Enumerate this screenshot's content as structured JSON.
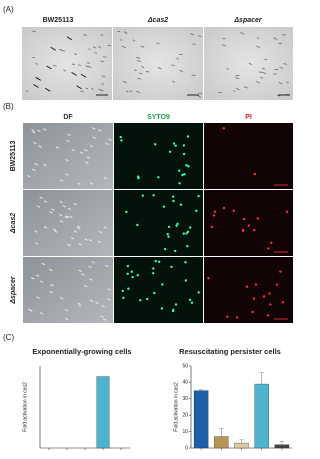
{
  "panel_a": {
    "label": "(A)",
    "columns": [
      "BW25113",
      "Δcas2",
      "Δspacer"
    ]
  },
  "panel_b": {
    "label": "(B)",
    "columns": [
      {
        "text": "DF",
        "color": "#333333"
      },
      {
        "text": "SYTO9",
        "color": "#1aa34a"
      },
      {
        "text": "PI",
        "color": "#d12a2a"
      }
    ],
    "rows": [
      "BW25113",
      "Δcas2",
      "Δspacer"
    ]
  },
  "panel_c": {
    "label": "(C)"
  },
  "chart_data": [
    {
      "type": "bar",
      "title": "Exponentially-growing cells",
      "y_label": "Fold activation in cas2",
      "categories": [
        null,
        null,
        null,
        null,
        null
      ],
      "values": [
        0,
        0,
        0,
        610,
        0
      ],
      "colors": [
        "#1f5fa8",
        "#b8965a",
        "#d9c9a3",
        "#4fb3cf",
        "#444444"
      ],
      "ylim": [
        0,
        700
      ]
    },
    {
      "type": "bar",
      "title": "Resuscitating persister cells",
      "y_label": "Fold activation in cas2",
      "categories": [
        null,
        null,
        null,
        null,
        null
      ],
      "values": [
        35,
        7,
        3,
        39,
        2
      ],
      "errors": [
        0.5,
        5,
        2,
        7,
        2
      ],
      "colors": [
        "#1f5fa8",
        "#b8965a",
        "#d9c9a3",
        "#4fb3cf",
        "#444444"
      ],
      "ylim": [
        0,
        50
      ],
      "yticks": [
        0,
        10,
        20,
        30,
        40,
        50
      ]
    }
  ]
}
